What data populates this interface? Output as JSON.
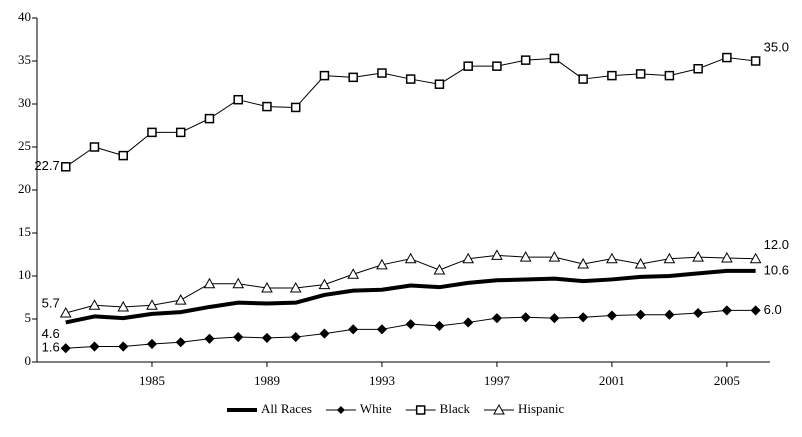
{
  "chart_data": {
    "type": "line",
    "x": [
      1982,
      1983,
      1984,
      1985,
      1986,
      1987,
      1988,
      1989,
      1990,
      1991,
      1992,
      1993,
      1994,
      1995,
      1996,
      1997,
      1998,
      1999,
      2000,
      2001,
      2002,
      2003,
      2004,
      2005,
      2006
    ],
    "xlim": [
      1981,
      2006.5
    ],
    "xticks": [
      1985,
      1989,
      1993,
      1997,
      2001,
      2005
    ],
    "ylim": [
      0,
      40
    ],
    "yticks": [
      0,
      5,
      10,
      15,
      20,
      25,
      30,
      35,
      40
    ],
    "legend": "bottom",
    "series": [
      {
        "name": "All Races",
        "color": "#000000",
        "marker": "none",
        "linewidth": 4,
        "values": [
          4.6,
          5.3,
          5.1,
          5.6,
          5.8,
          6.4,
          6.9,
          6.8,
          6.9,
          7.8,
          8.3,
          8.4,
          8.9,
          8.7,
          9.2,
          9.5,
          9.6,
          9.7,
          9.4,
          9.6,
          9.9,
          10.0,
          10.3,
          10.6,
          10.6
        ],
        "value_labels": [
          "4.6",
          null,
          null,
          null,
          null,
          null,
          null,
          null,
          null,
          null,
          null,
          null,
          null,
          null,
          null,
          null,
          null,
          null,
          null,
          null,
          null,
          null,
          null,
          null,
          "10.6"
        ]
      },
      {
        "name": "White",
        "color": "#000000",
        "marker": "diamond",
        "linewidth": 1,
        "values": [
          1.6,
          1.8,
          1.8,
          2.1,
          2.3,
          2.7,
          2.9,
          2.8,
          2.9,
          3.3,
          3.8,
          3.8,
          4.4,
          4.2,
          4.6,
          5.1,
          5.2,
          5.1,
          5.2,
          5.4,
          5.5,
          5.5,
          5.7,
          6.0,
          6.0
        ],
        "value_labels": [
          "1.6",
          null,
          null,
          null,
          null,
          null,
          null,
          null,
          null,
          null,
          null,
          null,
          null,
          null,
          null,
          null,
          null,
          null,
          null,
          null,
          null,
          null,
          null,
          null,
          "6.0"
        ]
      },
      {
        "name": "Black",
        "color": "#000000",
        "marker": "square",
        "linewidth": 1,
        "values": [
          22.7,
          25.0,
          24.0,
          26.7,
          26.7,
          28.3,
          30.5,
          29.7,
          29.6,
          33.3,
          33.1,
          33.6,
          32.9,
          32.3,
          34.4,
          34.4,
          35.1,
          35.3,
          32.9,
          33.3,
          33.5,
          33.3,
          34.1,
          35.4,
          35.0
        ],
        "value_labels": [
          "22.7",
          null,
          null,
          null,
          null,
          null,
          null,
          null,
          null,
          null,
          null,
          null,
          null,
          null,
          null,
          null,
          null,
          null,
          null,
          null,
          null,
          null,
          null,
          null,
          "35.0"
        ]
      },
      {
        "name": "Hispanic",
        "color": "#000000",
        "marker": "triangle",
        "linewidth": 1,
        "values": [
          5.7,
          6.6,
          6.4,
          6.6,
          7.2,
          9.1,
          9.1,
          8.6,
          8.6,
          9.0,
          10.2,
          11.3,
          12.0,
          10.7,
          12.0,
          12.4,
          12.2,
          12.2,
          11.4,
          12.0,
          11.4,
          12.0,
          12.2,
          12.1,
          12.0
        ],
        "value_labels": [
          "5.7",
          null,
          null,
          null,
          null,
          null,
          null,
          null,
          null,
          null,
          null,
          null,
          null,
          null,
          null,
          null,
          null,
          null,
          null,
          null,
          null,
          null,
          null,
          null,
          "12.0"
        ]
      }
    ]
  }
}
